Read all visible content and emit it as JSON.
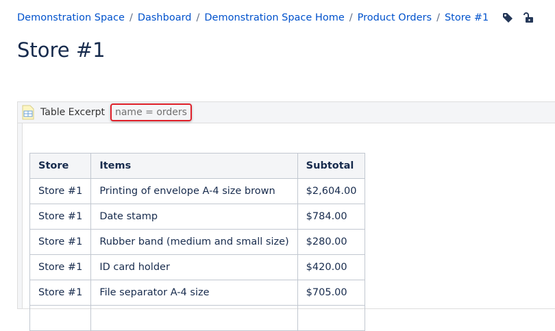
{
  "breadcrumbs": [
    "Demonstration Space",
    "Dashboard",
    "Demonstration Space Home",
    "Product Orders",
    "Store #1"
  ],
  "page_title": "Store #1",
  "macro": {
    "title": "Table Excerpt",
    "parameter": "name = orders"
  },
  "table": {
    "headers": [
      "Store",
      "Items",
      "Subtotal"
    ],
    "rows": [
      [
        "Store #1",
        "Printing of envelope A-4 size brown",
        "$2,604.00"
      ],
      [
        "Store #1",
        "Date stamp",
        "$784.00"
      ],
      [
        "Store #1",
        "Rubber band (medium and small size)",
        "$280.00"
      ],
      [
        "Store #1",
        "ID card holder",
        "$420.00"
      ],
      [
        "Store #1",
        "File separator A-4 size",
        "$705.00"
      ],
      [
        "",
        "",
        ""
      ]
    ]
  }
}
